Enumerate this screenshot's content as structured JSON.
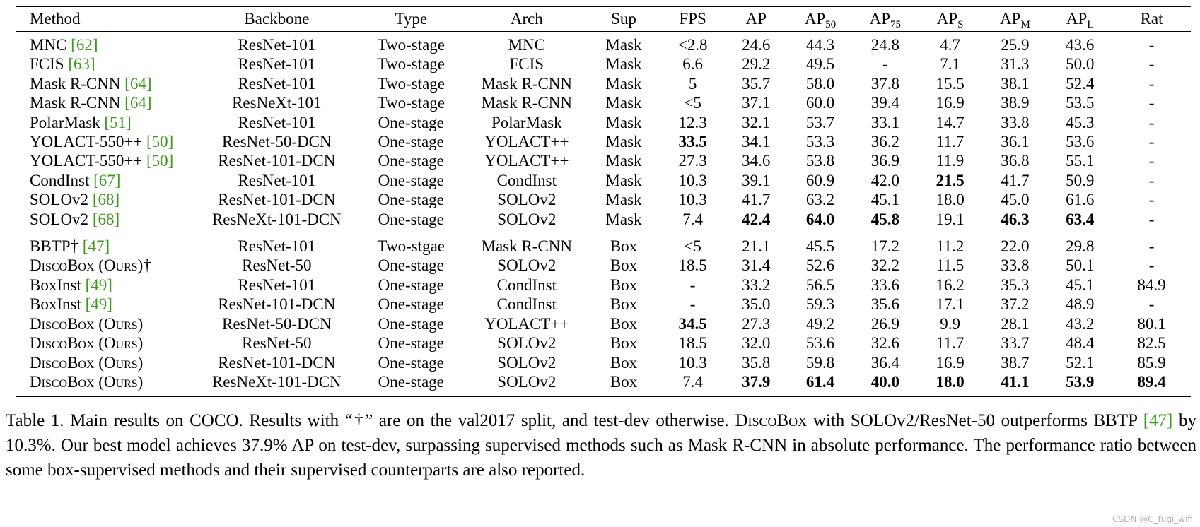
{
  "table": {
    "headers": {
      "method": "Method",
      "backbone": "Backbone",
      "type": "Type",
      "arch": "Arch",
      "sup": "Sup",
      "fps": "FPS",
      "ap": "AP",
      "ap50_base": "AP",
      "ap50_sub": "50",
      "ap75_base": "AP",
      "ap75_sub": "75",
      "aps_base": "AP",
      "aps_sub": "S",
      "apm_base": "AP",
      "apm_sub": "M",
      "apl_base": "AP",
      "apl_sub": "L",
      "rat": "Rat"
    },
    "rows": [
      {
        "method": "MNC ",
        "cite": "[62]",
        "backbone": "ResNet-101",
        "type": "Two-stage",
        "arch": "MNC",
        "sup": "Mask",
        "fps": "<2.8",
        "ap": "24.6",
        "ap50": "44.3",
        "ap75": "24.8",
        "aps": "4.7",
        "apm": "25.9",
        "apl": "43.6",
        "rat": "-"
      },
      {
        "method": "FCIS ",
        "cite": "[63]",
        "backbone": "ResNet-101",
        "type": "Two-stage",
        "arch": "FCIS",
        "sup": "Mask",
        "fps": "6.6",
        "ap": "29.2",
        "ap50": "49.5",
        "ap75": "-",
        "aps": "7.1",
        "apm": "31.3",
        "apl": "50.0",
        "rat": "-"
      },
      {
        "method": "Mask R-CNN ",
        "cite": "[64]",
        "backbone": "ResNet-101",
        "type": "Two-stage",
        "arch": "Mask R-CNN",
        "sup": "Mask",
        "fps": "5",
        "ap": "35.7",
        "ap50": "58.0",
        "ap75": "37.8",
        "aps": "15.5",
        "apm": "38.1",
        "apl": "52.4",
        "rat": "-"
      },
      {
        "method": "Mask R-CNN ",
        "cite": "[64]",
        "backbone": "ResNeXt-101",
        "type": "Two-stage",
        "arch": "Mask R-CNN",
        "sup": "Mask",
        "fps": "<5",
        "ap": "37.1",
        "ap50": "60.0",
        "ap75": "39.4",
        "aps": "16.9",
        "apm": "38.9",
        "apl": "53.5",
        "rat": "-"
      },
      {
        "method": "PolarMask ",
        "cite": "[51]",
        "backbone": "ResNet-101",
        "type": "One-stage",
        "arch": "PolarMask",
        "sup": "Mask",
        "fps": "12.3",
        "ap": "32.1",
        "ap50": "53.7",
        "ap75": "33.1",
        "aps": "14.7",
        "apm": "33.8",
        "apl": "45.3",
        "rat": "-"
      },
      {
        "method": "YOLACT-550++ ",
        "cite": "[50]",
        "backbone": "ResNet-50-DCN",
        "type": "One-stage",
        "arch": "YOLACT++",
        "sup": "Mask",
        "fps": "33.5",
        "ap": "34.1",
        "ap50": "53.3",
        "ap75": "36.2",
        "aps": "11.7",
        "apm": "36.1",
        "apl": "53.6",
        "rat": "-"
      },
      {
        "method": "YOLACT-550++ ",
        "cite": "[50]",
        "backbone": "ResNet-101-DCN",
        "type": "One-stage",
        "arch": "YOLACT++",
        "sup": "Mask",
        "fps": "27.3",
        "ap": "34.6",
        "ap50": "53.8",
        "ap75": "36.9",
        "aps": "11.9",
        "apm": "36.8",
        "apl": "55.1",
        "rat": "-"
      },
      {
        "method": "CondInst ",
        "cite": "[67]",
        "backbone": "ResNet-101",
        "type": "One-stage",
        "arch": "CondInst",
        "sup": "Mask",
        "fps": "10.3",
        "ap": "39.1",
        "ap50": "60.9",
        "ap75": "42.0",
        "aps": "21.5",
        "apm": "41.7",
        "apl": "50.9",
        "rat": "-"
      },
      {
        "method": "SOLOv2 ",
        "cite": "[68]",
        "backbone": "ResNet-101-DCN",
        "type": "One-stage",
        "arch": "SOLOv2",
        "sup": "Mask",
        "fps": "10.3",
        "ap": "41.7",
        "ap50": "63.2",
        "ap75": "45.1",
        "aps": "18.0",
        "apm": "45.0",
        "apl": "61.6",
        "rat": "-"
      },
      {
        "method": "SOLOv2 ",
        "cite": "[68]",
        "backbone": "ResNeXt-101-DCN",
        "type": "One-stage",
        "arch": "SOLOv2",
        "sup": "Mask",
        "fps": "7.4",
        "ap": "42.4",
        "ap50": "64.0",
        "ap75": "45.8",
        "aps": "19.1",
        "apm": "46.3",
        "apl": "63.4",
        "rat": "-"
      },
      {
        "method": "BBTP† ",
        "cite": "[47]",
        "backbone": "ResNet-101",
        "type": "Two-stgae",
        "arch": "Mask R-CNN",
        "sup": "Box",
        "fps": "<5",
        "ap": "21.1",
        "ap50": "45.5",
        "ap75": "17.2",
        "aps": "11.2",
        "apm": "22.0",
        "apl": "29.8",
        "rat": "-"
      },
      {
        "method": "DiscoBox (Ours)†",
        "cite": "",
        "backbone": "ResNet-50",
        "type": "One-stage",
        "arch": "SOLOv2",
        "sup": "Box",
        "fps": "18.5",
        "ap": "31.4",
        "ap50": "52.6",
        "ap75": "32.2",
        "aps": "11.5",
        "apm": "33.8",
        "apl": "50.1",
        "rat": "-"
      },
      {
        "method": "BoxInst ",
        "cite": "[49]",
        "backbone": "ResNet-101",
        "type": "One-stage",
        "arch": "CondInst",
        "sup": "Box",
        "fps": "-",
        "ap": "33.2",
        "ap50": "56.5",
        "ap75": "33.6",
        "aps": "16.2",
        "apm": "35.3",
        "apl": "45.1",
        "rat": "84.9"
      },
      {
        "method": "BoxInst ",
        "cite": "[49]",
        "backbone": "ResNet-101-DCN",
        "type": "One-stage",
        "arch": "CondInst",
        "sup": "Box",
        "fps": "-",
        "ap": "35.0",
        "ap50": "59.3",
        "ap75": "35.6",
        "aps": "17.1",
        "apm": "37.2",
        "apl": "48.9",
        "rat": "-"
      },
      {
        "method": "DiscoBox (Ours)",
        "cite": "",
        "backbone": "ResNet-50-DCN",
        "type": "One-stage",
        "arch": "YOLACT++",
        "sup": "Box",
        "fps": "34.5",
        "ap": "27.3",
        "ap50": "49.2",
        "ap75": "26.9",
        "aps": "9.9",
        "apm": "28.1",
        "apl": "43.2",
        "rat": "80.1"
      },
      {
        "method": "DiscoBox (Ours)",
        "cite": "",
        "backbone": "ResNet-50",
        "type": "One-stage",
        "arch": "SOLOv2",
        "sup": "Box",
        "fps": "18.5",
        "ap": "32.0",
        "ap50": "53.6",
        "ap75": "32.6",
        "aps": "11.7",
        "apm": "33.7",
        "apl": "48.4",
        "rat": "82.5"
      },
      {
        "method": "DiscoBox (Ours)",
        "cite": "",
        "backbone": "ResNet-101-DCN",
        "type": "One-stage",
        "arch": "SOLOv2",
        "sup": "Box",
        "fps": "10.3",
        "ap": "35.8",
        "ap50": "59.8",
        "ap75": "36.4",
        "aps": "16.9",
        "apm": "38.7",
        "apl": "52.1",
        "rat": "85.9"
      },
      {
        "method": "DiscoBox (Ours)",
        "cite": "",
        "backbone": "ResNeXt-101-DCN",
        "type": "One-stage",
        "arch": "SOLOv2",
        "sup": "Box",
        "fps": "7.4",
        "ap": "37.9",
        "ap50": "61.4",
        "ap75": "40.0",
        "aps": "18.0",
        "apm": "41.1",
        "apl": "53.9",
        "rat": "89.4"
      }
    ]
  },
  "caption": {
    "prefix": "Table 1. Main results on COCO. Results with “†” are on the val2017 split, and test-dev otherwise. ",
    "name": "DiscoBox",
    "mid1": " with SOLOv2/ResNet-50 outperforms BBTP ",
    "cite": "[47]",
    "rest": " by 10.3%. Our best model achieves 37.9% AP on test-dev, surpassing supervised methods such as Mask R-CNN in absolute performance. The performance ratio between some box-supervised methods and their supervised counterparts are also reported."
  },
  "watermark": "CSDN @C_fugi_wifi"
}
